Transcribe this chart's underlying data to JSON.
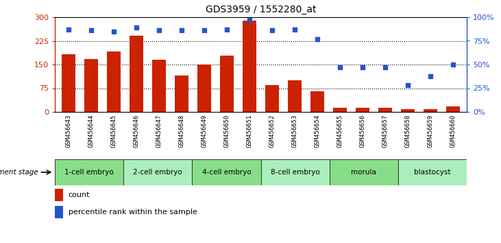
{
  "title": "GDS3959 / 1552280_at",
  "samples": [
    "GSM456643",
    "GSM456644",
    "GSM456645",
    "GSM456646",
    "GSM456647",
    "GSM456648",
    "GSM456649",
    "GSM456650",
    "GSM456651",
    "GSM456652",
    "GSM456653",
    "GSM456654",
    "GSM456655",
    "GSM456656",
    "GSM456657",
    "GSM456658",
    "GSM456659",
    "GSM456660"
  ],
  "counts": [
    182,
    168,
    192,
    242,
    165,
    115,
    150,
    178,
    290,
    85,
    100,
    65,
    12,
    12,
    12,
    8,
    8,
    18
  ],
  "percentile_ranks": [
    87,
    86,
    85,
    89,
    86,
    86,
    86,
    87,
    97,
    86,
    87,
    77,
    47,
    47,
    47,
    28,
    38,
    50
  ],
  "bar_color": "#cc2200",
  "dot_color": "#2255cc",
  "ylim_left": [
    0,
    300
  ],
  "ylim_right": [
    0,
    100
  ],
  "yticks_left": [
    0,
    75,
    150,
    225,
    300
  ],
  "yticks_right": [
    0,
    25,
    50,
    75,
    100
  ],
  "gridline_vals": [
    75,
    150,
    225
  ],
  "stages": [
    {
      "label": "1-cell embryo",
      "start": 0,
      "end": 3,
      "color": "#88dd88"
    },
    {
      "label": "2-cell embryo",
      "start": 3,
      "end": 6,
      "color": "#aaeebb"
    },
    {
      "label": "4-cell embryo",
      "start": 6,
      "end": 9,
      "color": "#88dd88"
    },
    {
      "label": "8-cell embryo",
      "start": 9,
      "end": 12,
      "color": "#aaeebb"
    },
    {
      "label": "morula",
      "start": 12,
      "end": 15,
      "color": "#88dd88"
    },
    {
      "label": "blastocyst",
      "start": 15,
      "end": 18,
      "color": "#aaeebb"
    }
  ],
  "legend_count_label": "count",
  "legend_pct_label": "percentile rank within the sample",
  "dev_stage_label": "development stage",
  "xtick_bg": "#c8c8c8",
  "stage_bg": "#66cc66"
}
